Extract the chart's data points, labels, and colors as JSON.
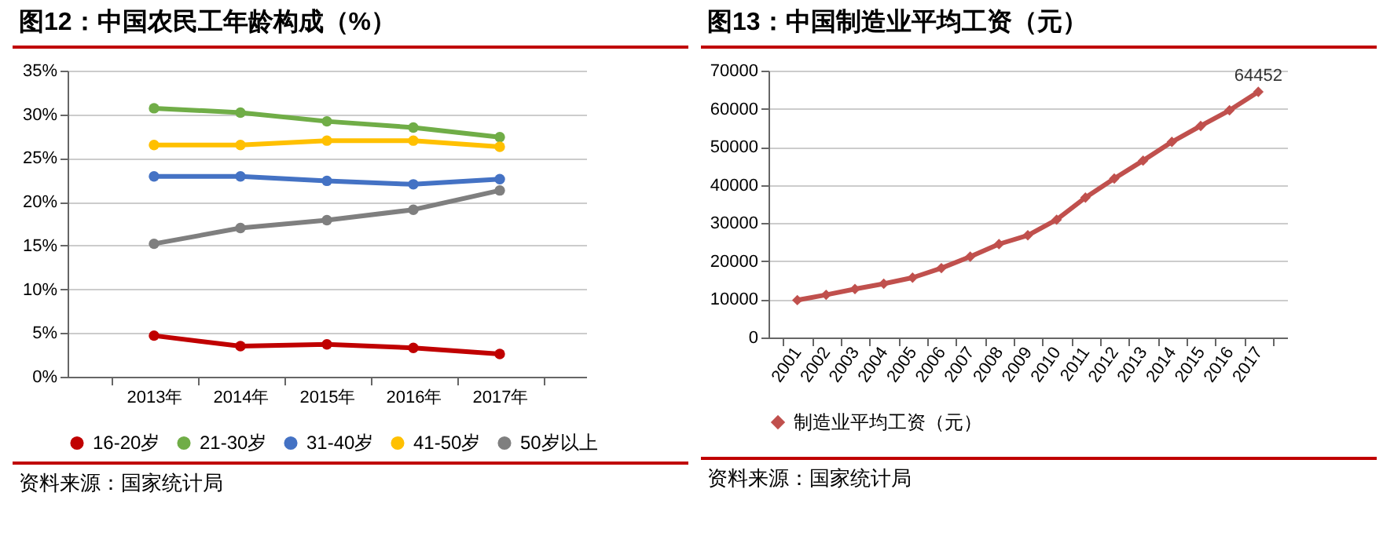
{
  "chart_data": [
    {
      "type": "line",
      "title": "图12：中国农民工年龄构成（%）",
      "annotations": [
        "资料来源：国家统计局"
      ],
      "categories": [
        "2013年",
        "2014年",
        "2015年",
        "2016年",
        "2017年"
      ],
      "series": [
        {
          "name": "16-20岁",
          "color": "#c00000",
          "values": [
            4.7,
            3.5,
            3.7,
            3.3,
            2.6
          ]
        },
        {
          "name": "21-30岁",
          "color": "#70ad47",
          "values": [
            30.7,
            30.2,
            29.2,
            28.5,
            27.4
          ]
        },
        {
          "name": "31-40岁",
          "color": "#4472c4",
          "values": [
            22.9,
            22.9,
            22.4,
            22.0,
            22.6
          ]
        },
        {
          "name": "41-50岁",
          "color": "#ffc000",
          "values": [
            26.5,
            26.5,
            27.0,
            27.0,
            26.3
          ]
        },
        {
          "name": "50岁以上",
          "color": "#7f7f7f",
          "values": [
            15.2,
            17.0,
            17.9,
            19.1,
            21.3
          ]
        }
      ],
      "ylim": [
        0,
        35
      ],
      "yticks": [
        {
          "value": 0,
          "label": "0%"
        },
        {
          "value": 5,
          "label": "5%"
        },
        {
          "value": 10,
          "label": "10%"
        },
        {
          "value": 15,
          "label": "15%"
        },
        {
          "value": 20,
          "label": "20%"
        },
        {
          "value": 25,
          "label": "25%"
        },
        {
          "value": 30,
          "label": "30%"
        },
        {
          "value": 35,
          "label": "35%"
        }
      ],
      "grid": "y",
      "legend": "bottom",
      "marker": "circle"
    },
    {
      "type": "line",
      "title": "图13：中国制造业平均工资（元）",
      "annotations": [
        "资料来源：国家统计局"
      ],
      "categories": [
        "2001",
        "2002",
        "2003",
        "2004",
        "2005",
        "2006",
        "2007",
        "2008",
        "2009",
        "2010",
        "2011",
        "2012",
        "2013",
        "2014",
        "2015",
        "2016",
        "2017"
      ],
      "series": [
        {
          "name": "制造业平均工资（元）",
          "color": "#c0504d",
          "values": [
            9800,
            11200,
            12700,
            14100,
            15700,
            18200,
            21200,
            24500,
            26800,
            30900,
            36700,
            41700,
            46400,
            51300,
            55500,
            59600,
            64452
          ],
          "value_labels": [
            null,
            null,
            null,
            null,
            null,
            null,
            null,
            null,
            null,
            null,
            null,
            null,
            null,
            null,
            null,
            null,
            "64452"
          ]
        }
      ],
      "ylim": [
        0,
        70000
      ],
      "yticks": [
        0,
        10000,
        20000,
        30000,
        40000,
        50000,
        60000,
        70000
      ],
      "grid": "y",
      "legend": "bottom",
      "marker": "diamond"
    }
  ]
}
